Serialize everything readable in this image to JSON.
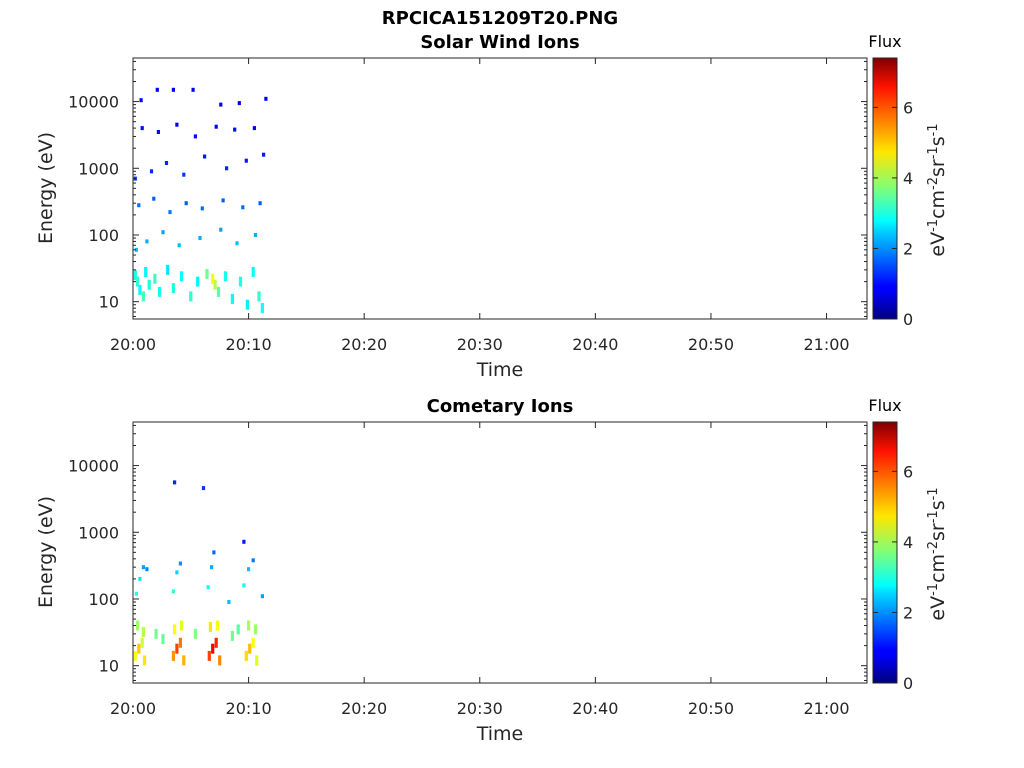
{
  "figure_title": "RPCICA151209T20.PNG",
  "chart_data": [
    {
      "type": "heatmap",
      "title": "Solar Wind Ions",
      "xlabel": "Time",
      "ylabel": "Energy (eV)",
      "x_ticks": [
        "20:00",
        "20:10",
        "20:20",
        "20:30",
        "20:40",
        "20:50",
        "21:00"
      ],
      "xlim_minutes": [
        0,
        63.5
      ],
      "y_scale": "log",
      "y_ticks": [
        10,
        100,
        1000,
        10000
      ],
      "ylim": [
        5.5,
        45000
      ],
      "colorbar": {
        "title": "Flux",
        "label": "eV",
        "label_parts": [
          "eV",
          "-1",
          "cm",
          "-2",
          "sr",
          "-1",
          "s",
          "-1"
        ],
        "ticks": [
          0,
          2,
          4,
          6
        ],
        "range": [
          0,
          7.4
        ],
        "colormap": "jet"
      },
      "data_extent_minutes": [
        0,
        11.6
      ],
      "cells": [
        {
          "t": 0.2,
          "e": 25,
          "f": 2.9
        },
        {
          "t": 0.4,
          "e": 20,
          "f": 3.1
        },
        {
          "t": 0.6,
          "e": 15,
          "f": 2.8
        },
        {
          "t": 0.9,
          "e": 12,
          "f": 3.3
        },
        {
          "t": 1.1,
          "e": 28,
          "f": 2.7
        },
        {
          "t": 1.4,
          "e": 18,
          "f": 3.0
        },
        {
          "t": 1.9,
          "e": 22,
          "f": 3.2
        },
        {
          "t": 2.3,
          "e": 14,
          "f": 2.9
        },
        {
          "t": 3.0,
          "e": 30,
          "f": 2.6
        },
        {
          "t": 3.5,
          "e": 16,
          "f": 3.0
        },
        {
          "t": 4.2,
          "e": 24,
          "f": 2.8
        },
        {
          "t": 5.0,
          "e": 12,
          "f": 3.1
        },
        {
          "t": 5.6,
          "e": 20,
          "f": 2.7
        },
        {
          "t": 6.4,
          "e": 26,
          "f": 3.6
        },
        {
          "t": 6.9,
          "e": 22,
          "f": 4.6
        },
        {
          "t": 7.1,
          "e": 18,
          "f": 4.1
        },
        {
          "t": 7.4,
          "e": 14,
          "f": 3.4
        },
        {
          "t": 8.0,
          "e": 24,
          "f": 2.9
        },
        {
          "t": 8.6,
          "e": 11,
          "f": 2.8
        },
        {
          "t": 9.3,
          "e": 20,
          "f": 3.0
        },
        {
          "t": 9.9,
          "e": 9,
          "f": 2.7
        },
        {
          "t": 10.4,
          "e": 28,
          "f": 2.8
        },
        {
          "t": 10.9,
          "e": 12,
          "f": 3.1
        },
        {
          "t": 11.2,
          "e": 8,
          "f": 2.9
        },
        {
          "t": 0.3,
          "e": 60,
          "f": 2.3
        },
        {
          "t": 1.2,
          "e": 80,
          "f": 2.2
        },
        {
          "t": 2.6,
          "e": 110,
          "f": 2.1
        },
        {
          "t": 4.0,
          "e": 70,
          "f": 2.3
        },
        {
          "t": 5.8,
          "e": 90,
          "f": 2.2
        },
        {
          "t": 7.6,
          "e": 120,
          "f": 2.1
        },
        {
          "t": 9.0,
          "e": 75,
          "f": 2.3
        },
        {
          "t": 10.6,
          "e": 100,
          "f": 2.2
        },
        {
          "t": 0.5,
          "e": 280,
          "f": 1.7
        },
        {
          "t": 1.8,
          "e": 350,
          "f": 1.6
        },
        {
          "t": 3.2,
          "e": 220,
          "f": 1.8
        },
        {
          "t": 4.6,
          "e": 300,
          "f": 1.6
        },
        {
          "t": 6.0,
          "e": 250,
          "f": 1.7
        },
        {
          "t": 7.8,
          "e": 330,
          "f": 1.6
        },
        {
          "t": 9.5,
          "e": 260,
          "f": 1.7
        },
        {
          "t": 11.0,
          "e": 300,
          "f": 1.6
        },
        {
          "t": 0.2,
          "e": 700,
          "f": 1.3
        },
        {
          "t": 1.6,
          "e": 900,
          "f": 1.2
        },
        {
          "t": 2.9,
          "e": 1200,
          "f": 1.2
        },
        {
          "t": 4.4,
          "e": 800,
          "f": 1.3
        },
        {
          "t": 6.2,
          "e": 1500,
          "f": 1.1
        },
        {
          "t": 8.1,
          "e": 1000,
          "f": 1.2
        },
        {
          "t": 9.8,
          "e": 1300,
          "f": 1.1
        },
        {
          "t": 11.3,
          "e": 1600,
          "f": 1.1
        },
        {
          "t": 0.8,
          "e": 4000,
          "f": 1.0
        },
        {
          "t": 2.2,
          "e": 3500,
          "f": 1.0
        },
        {
          "t": 3.8,
          "e": 4500,
          "f": 0.9
        },
        {
          "t": 5.4,
          "e": 3000,
          "f": 1.0
        },
        {
          "t": 7.2,
          "e": 4200,
          "f": 0.9
        },
        {
          "t": 8.8,
          "e": 3800,
          "f": 1.0
        },
        {
          "t": 10.5,
          "e": 4000,
          "f": 0.9
        },
        {
          "t": 0.7,
          "e": 10500,
          "f": 0.9
        },
        {
          "t": 2.1,
          "e": 15000,
          "f": 0.8
        },
        {
          "t": 3.5,
          "e": 15000,
          "f": 0.8
        },
        {
          "t": 5.2,
          "e": 15000,
          "f": 0.8
        },
        {
          "t": 7.6,
          "e": 9000,
          "f": 0.9
        },
        {
          "t": 9.2,
          "e": 9500,
          "f": 0.8
        },
        {
          "t": 11.5,
          "e": 11000,
          "f": 0.8
        }
      ]
    },
    {
      "type": "heatmap",
      "title": "Cometary Ions",
      "xlabel": "Time",
      "ylabel": "Energy (eV)",
      "x_ticks": [
        "20:00",
        "20:10",
        "20:20",
        "20:30",
        "20:40",
        "20:50",
        "21:00"
      ],
      "xlim_minutes": [
        0,
        63.5
      ],
      "y_scale": "log",
      "y_ticks": [
        10,
        100,
        1000,
        10000
      ],
      "ylim": [
        5.5,
        45000
      ],
      "colorbar": {
        "title": "Flux",
        "label": "eV",
        "label_parts": [
          "eV",
          "-1",
          "cm",
          "-2",
          "sr",
          "-1",
          "s",
          "-1"
        ],
        "ticks": [
          0,
          2,
          4,
          6
        ],
        "range": [
          0,
          7.4
        ],
        "colormap": "jet"
      },
      "data_extent_minutes": [
        0,
        11.6
      ],
      "cells": [
        {
          "t": 0.2,
          "e": 14,
          "f": 4.6
        },
        {
          "t": 0.5,
          "e": 18,
          "f": 5.0
        },
        {
          "t": 0.8,
          "e": 22,
          "f": 4.3
        },
        {
          "t": 1.0,
          "e": 12,
          "f": 4.8
        },
        {
          "t": 0.4,
          "e": 40,
          "f": 3.9
        },
        {
          "t": 0.9,
          "e": 32,
          "f": 4.1
        },
        {
          "t": 3.5,
          "e": 14,
          "f": 5.4
        },
        {
          "t": 3.8,
          "e": 18,
          "f": 6.0
        },
        {
          "t": 4.1,
          "e": 22,
          "f": 5.6
        },
        {
          "t": 4.4,
          "e": 12,
          "f": 5.2
        },
        {
          "t": 3.6,
          "e": 35,
          "f": 4.6
        },
        {
          "t": 4.2,
          "e": 40,
          "f": 4.4
        },
        {
          "t": 6.6,
          "e": 14,
          "f": 6.0
        },
        {
          "t": 6.9,
          "e": 18,
          "f": 6.5
        },
        {
          "t": 7.2,
          "e": 22,
          "f": 6.2
        },
        {
          "t": 7.5,
          "e": 12,
          "f": 5.5
        },
        {
          "t": 6.7,
          "e": 38,
          "f": 4.8
        },
        {
          "t": 7.3,
          "e": 40,
          "f": 4.6
        },
        {
          "t": 9.8,
          "e": 14,
          "f": 4.9
        },
        {
          "t": 10.1,
          "e": 18,
          "f": 5.1
        },
        {
          "t": 10.4,
          "e": 22,
          "f": 4.6
        },
        {
          "t": 10.7,
          "e": 12,
          "f": 4.4
        },
        {
          "t": 10.0,
          "e": 40,
          "f": 4.0
        },
        {
          "t": 10.6,
          "e": 35,
          "f": 3.9
        },
        {
          "t": 2.0,
          "e": 30,
          "f": 3.6
        },
        {
          "t": 2.6,
          "e": 25,
          "f": 3.5
        },
        {
          "t": 5.4,
          "e": 30,
          "f": 3.7
        },
        {
          "t": 8.6,
          "e": 28,
          "f": 3.6
        },
        {
          "t": 9.1,
          "e": 35,
          "f": 3.4
        },
        {
          "t": 0.3,
          "e": 120,
          "f": 3.0
        },
        {
          "t": 0.6,
          "e": 200,
          "f": 2.6
        },
        {
          "t": 0.9,
          "e": 300,
          "f": 2.1
        },
        {
          "t": 1.2,
          "e": 280,
          "f": 1.9
        },
        {
          "t": 3.5,
          "e": 130,
          "f": 3.1
        },
        {
          "t": 3.8,
          "e": 250,
          "f": 2.5
        },
        {
          "t": 4.1,
          "e": 340,
          "f": 2.0
        },
        {
          "t": 6.5,
          "e": 150,
          "f": 2.9
        },
        {
          "t": 6.8,
          "e": 300,
          "f": 2.2
        },
        {
          "t": 7.0,
          "e": 500,
          "f": 1.7
        },
        {
          "t": 9.6,
          "e": 160,
          "f": 2.8
        },
        {
          "t": 10.0,
          "e": 280,
          "f": 2.3
        },
        {
          "t": 10.4,
          "e": 380,
          "f": 1.8
        },
        {
          "t": 11.2,
          "e": 110,
          "f": 2.1
        },
        {
          "t": 8.3,
          "e": 90,
          "f": 2.3
        },
        {
          "t": 3.6,
          "e": 5600,
          "f": 1.2
        },
        {
          "t": 6.1,
          "e": 4600,
          "f": 1.3
        },
        {
          "t": 9.6,
          "e": 720,
          "f": 1.1
        }
      ]
    }
  ]
}
